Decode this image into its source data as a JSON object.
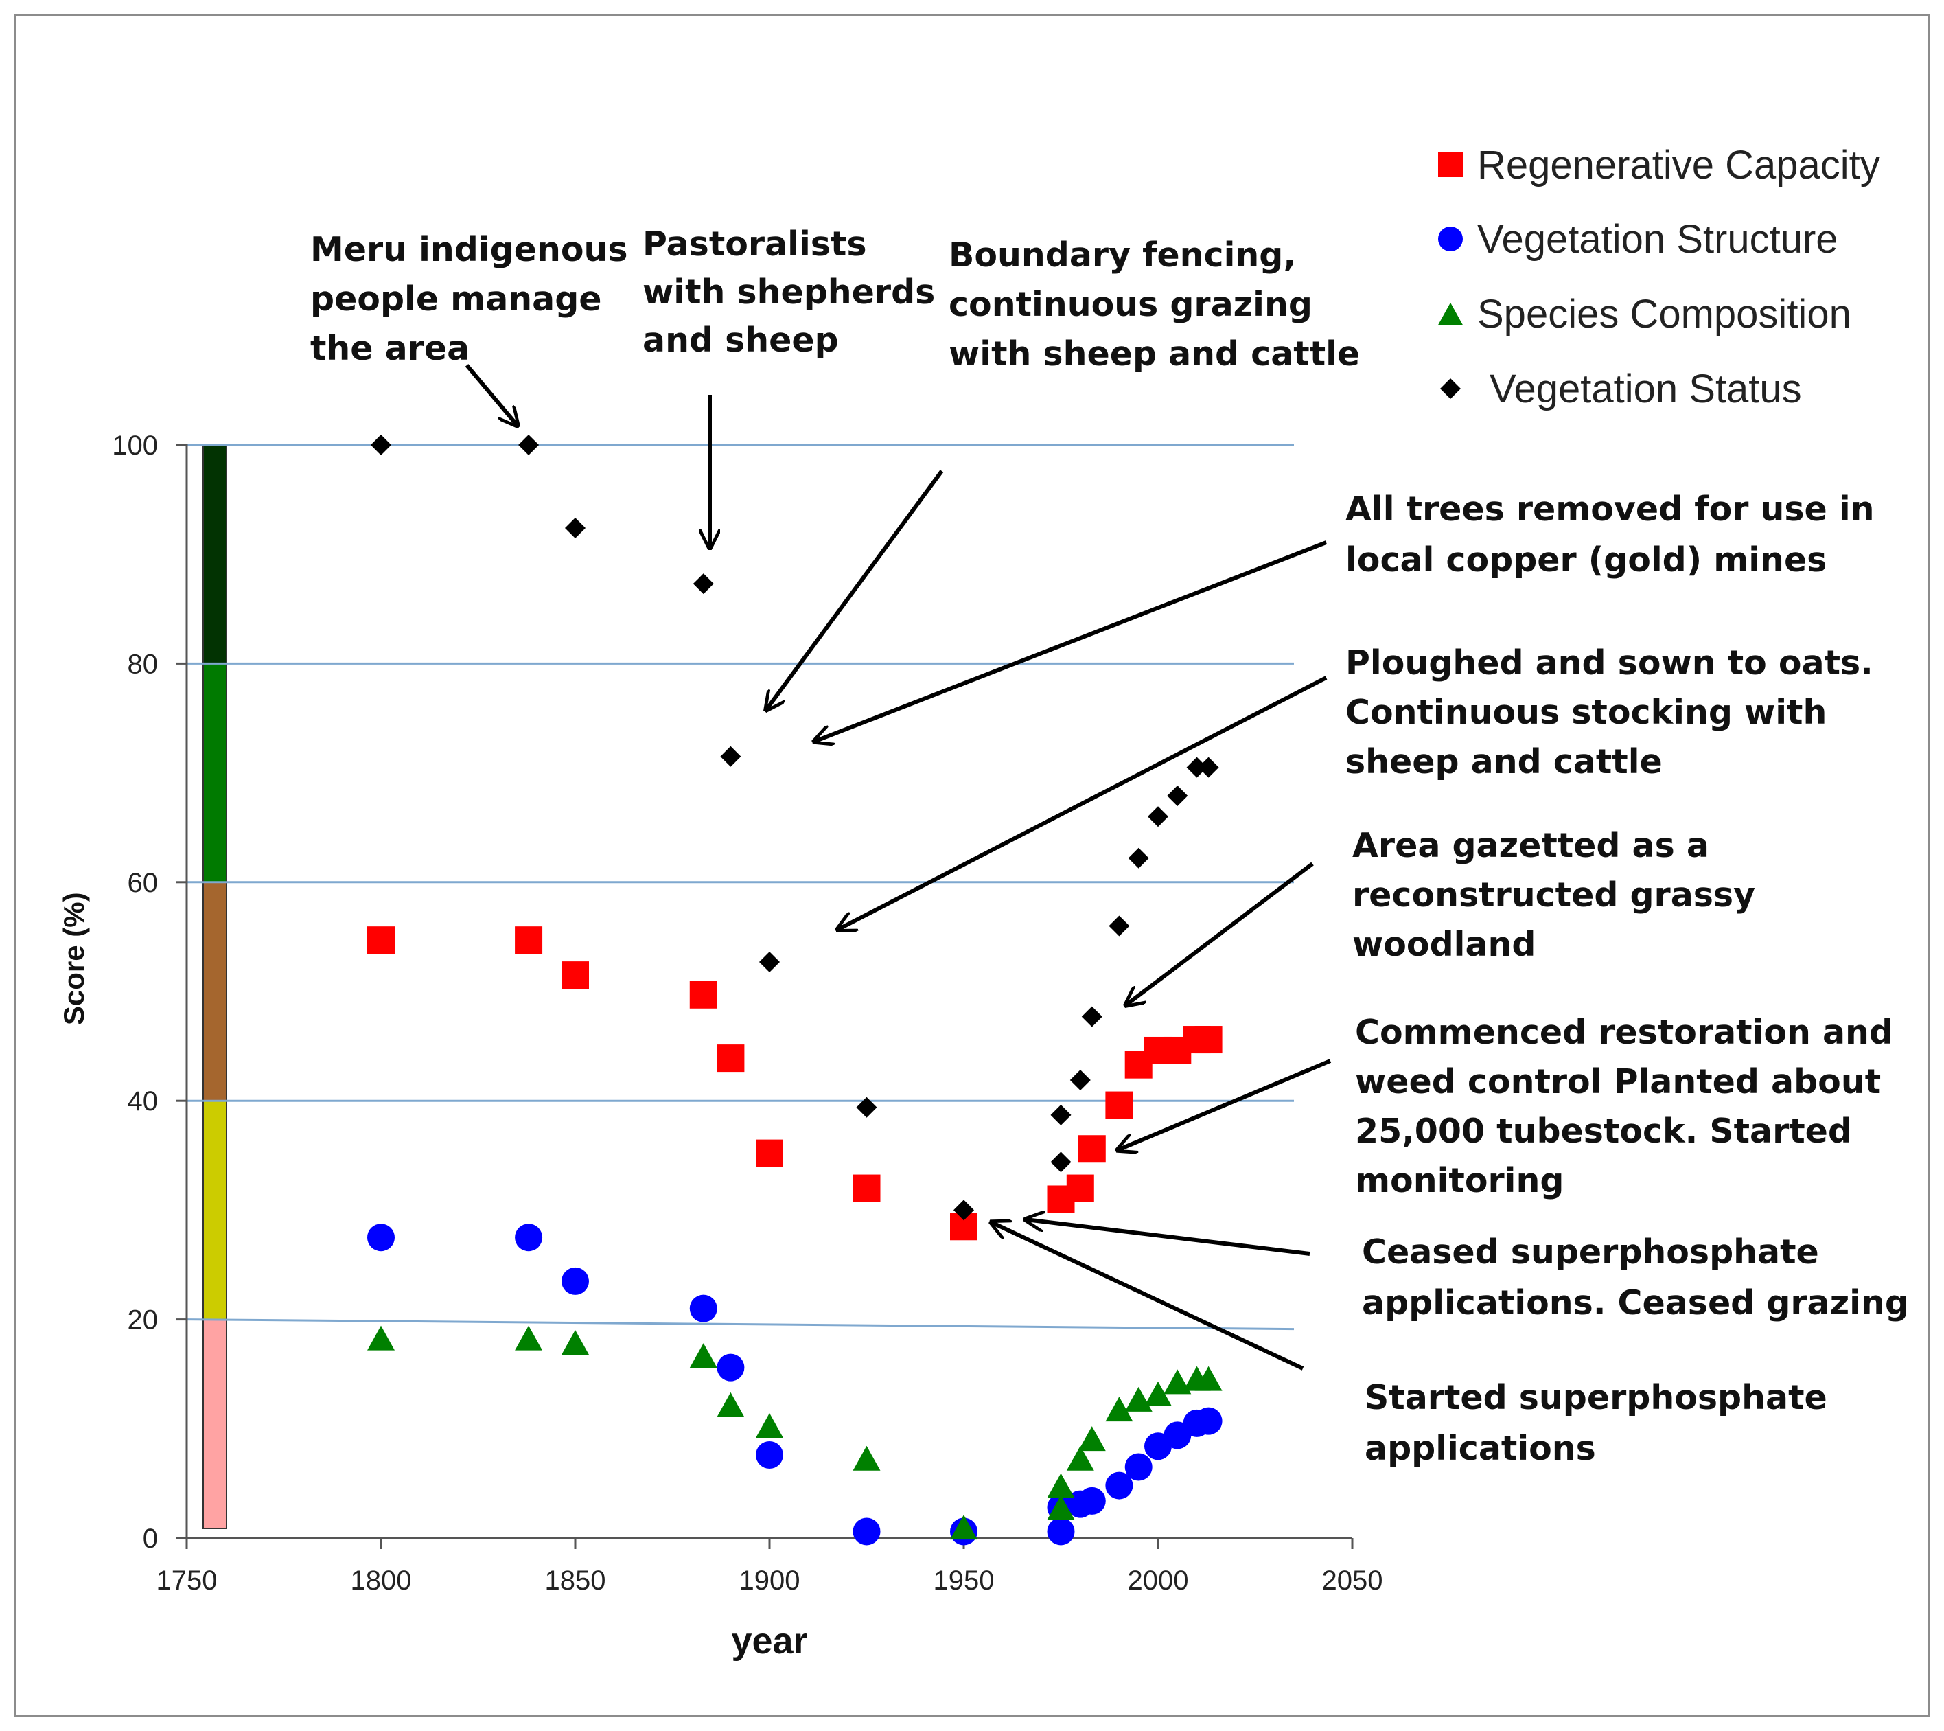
{
  "chart_data": {
    "type": "scatter",
    "xlabel": "year",
    "ylabel": "Score (%)",
    "xlim": [
      1750,
      2050
    ],
    "ylim": [
      0,
      100
    ],
    "x_ticks": [
      1750,
      1800,
      1850,
      1900,
      1950,
      2000,
      2050
    ],
    "y_ticks": [
      0,
      20,
      40,
      60,
      80,
      100
    ],
    "gridlines_y": [
      20,
      40,
      60,
      80,
      100
    ],
    "legend_position": "top-right",
    "series": [
      {
        "name": "Regenerative Capacity",
        "marker": "square",
        "color": "#ff0000",
        "points": [
          [
            1800,
            54.7
          ],
          [
            1838,
            54.7
          ],
          [
            1850,
            51.5
          ],
          [
            1883,
            49.7
          ],
          [
            1890,
            43.9
          ],
          [
            1900,
            35.2
          ],
          [
            1925,
            32.0
          ],
          [
            1950,
            28.5
          ],
          [
            1975,
            31.0
          ],
          [
            1980,
            32.0
          ],
          [
            1983,
            35.6
          ],
          [
            1990,
            39.6
          ],
          [
            1995,
            43.3
          ],
          [
            2000,
            44.6
          ],
          [
            2005,
            44.6
          ],
          [
            2010,
            45.6
          ],
          [
            2013,
            45.6
          ]
        ]
      },
      {
        "name": "Vegetation Structure",
        "marker": "circle",
        "color": "#0000ff",
        "points": [
          [
            1800,
            27.5
          ],
          [
            1838,
            27.5
          ],
          [
            1850,
            23.5
          ],
          [
            1883,
            21.0
          ],
          [
            1890,
            15.6
          ],
          [
            1900,
            7.6
          ],
          [
            1925,
            0.6
          ],
          [
            1950,
            0.6
          ],
          [
            1975,
            0.6
          ],
          [
            1975,
            2.8
          ],
          [
            1980,
            3.1
          ],
          [
            1983,
            3.4
          ],
          [
            1990,
            4.8
          ],
          [
            1995,
            6.5
          ],
          [
            2000,
            8.4
          ],
          [
            2005,
            9.4
          ],
          [
            2010,
            10.5
          ],
          [
            2013,
            10.7
          ]
        ]
      },
      {
        "name": "Species Composition",
        "marker": "triangle",
        "color": "#008000",
        "points": [
          [
            1800,
            18.3
          ],
          [
            1838,
            18.3
          ],
          [
            1850,
            17.9
          ],
          [
            1883,
            16.7
          ],
          [
            1890,
            12.2
          ],
          [
            1900,
            10.3
          ],
          [
            1925,
            7.3
          ],
          [
            1950,
            1.0
          ],
          [
            1975,
            2.8
          ],
          [
            1975,
            4.8
          ],
          [
            1980,
            7.3
          ],
          [
            1983,
            9.1
          ],
          [
            1990,
            11.8
          ],
          [
            1995,
            12.7
          ],
          [
            2000,
            13.2
          ],
          [
            2005,
            14.3
          ],
          [
            2010,
            14.6
          ],
          [
            2013,
            14.6
          ]
        ]
      },
      {
        "name": "Vegetation Status",
        "marker": "diamond",
        "color": "#000000",
        "points": [
          [
            1800,
            100
          ],
          [
            1838,
            100
          ],
          [
            1850,
            92.4
          ],
          [
            1883,
            87.3
          ],
          [
            1890,
            71.5
          ],
          [
            1900,
            52.7
          ],
          [
            1925,
            39.4
          ],
          [
            1950,
            30.0
          ],
          [
            1975,
            34.4
          ],
          [
            1975,
            38.7
          ],
          [
            1980,
            41.9
          ],
          [
            1983,
            47.7
          ],
          [
            1990,
            56.0
          ],
          [
            1995,
            62.2
          ],
          [
            2000,
            66.0
          ],
          [
            2005,
            67.9
          ],
          [
            2010,
            70.5
          ],
          [
            2013,
            70.5
          ]
        ]
      }
    ],
    "color_bands": [
      {
        "from": 0,
        "to": 20,
        "color": "#ffa3a3"
      },
      {
        "from": 20,
        "to": 40,
        "color": "#cccc00"
      },
      {
        "from": 40,
        "to": 60,
        "color": "#a5662e"
      },
      {
        "from": 60,
        "to": 80,
        "color": "#007a00"
      },
      {
        "from": 80,
        "to": 100,
        "color": "#023302"
      }
    ],
    "annotations": [
      {
        "id": "meru",
        "lines": [
          "Meru indigenous",
          "people manage",
          "the area"
        ],
        "points_to": [
          1838,
          100
        ]
      },
      {
        "id": "pastoralists",
        "lines": [
          "Pastoralists",
          "with shepherds",
          "and sheep"
        ],
        "points_to": [
          1883,
          87.3
        ]
      },
      {
        "id": "fencing",
        "lines": [
          "Boundary fencing,",
          "continuous grazing",
          "with sheep and cattle"
        ],
        "points_to": [
          1890,
          71.5
        ]
      },
      {
        "id": "trees",
        "lines": [
          "All trees removed for use in",
          "local copper (gold) mines"
        ],
        "points_to": [
          1900,
          71.5
        ]
      },
      {
        "id": "ploughed",
        "lines": [
          "Ploughed and sown to oats.",
          "Continuous stocking with",
          "sheep and cattle"
        ],
        "points_to": [
          1900,
          52.7
        ]
      },
      {
        "id": "gazetted",
        "lines": [
          "Area gazetted as a",
          "reconstructed grassy",
          "woodland"
        ],
        "points_to": [
          1983,
          47.7
        ]
      },
      {
        "id": "restoration",
        "lines": [
          "Commenced restoration and",
          "weed control Planted about",
          "25,000 tubestock. Started",
          "monitoring"
        ],
        "points_to": [
          1983,
          35.6
        ]
      },
      {
        "id": "ceased",
        "lines": [
          "Ceased superphosphate",
          "applications. Ceased grazing"
        ],
        "points_to": [
          1950,
          30.0
        ]
      },
      {
        "id": "started",
        "lines": [
          "Started superphosphate",
          "applications"
        ],
        "points_to": [
          1950,
          30.0
        ]
      }
    ]
  }
}
